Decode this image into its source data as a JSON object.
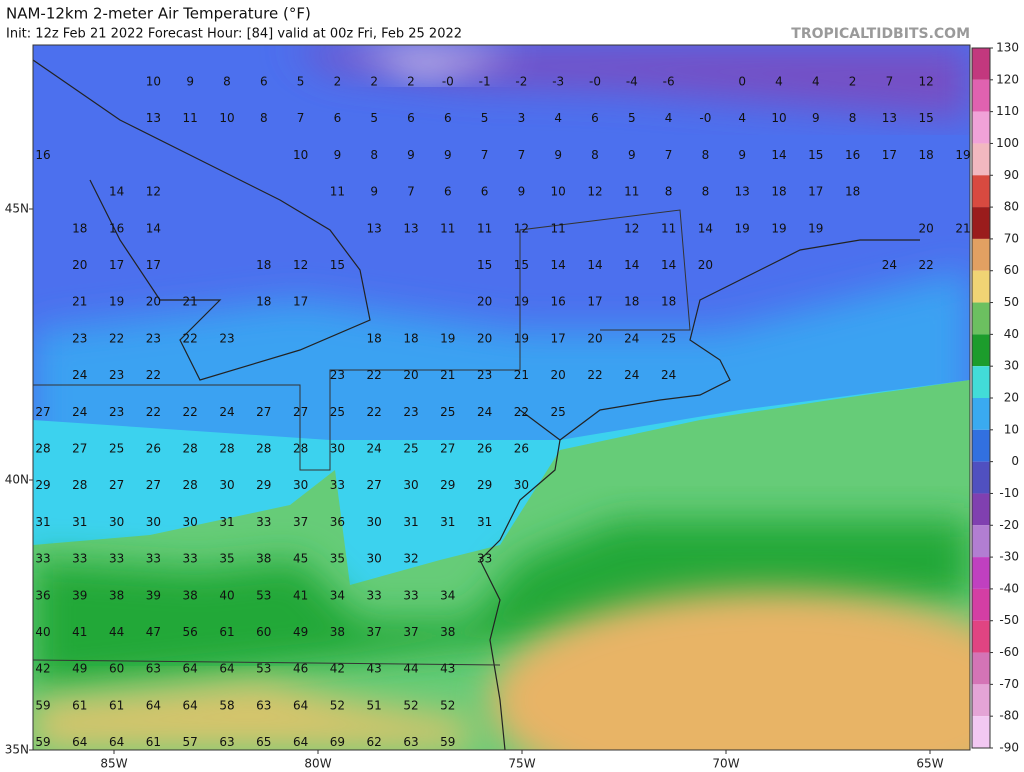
{
  "header": {
    "title": "NAM-12km 2-meter Air Temperature (°F)",
    "subtitle": "Init: 12z Feb 21 2022   Forecast Hour: [84]   valid at 00z Fri, Feb 25 2022",
    "watermark": "TROPICALTIDBITS.COM"
  },
  "map": {
    "lat_labels": [
      "45N",
      "40N",
      "35N"
    ],
    "lon_labels": [
      "85W",
      "80W",
      "75W",
      "70W",
      "65W"
    ],
    "grid_values": [
      [
        null,
        null,
        null,
        10,
        9,
        8,
        6,
        5,
        2,
        2,
        2,
        "-0",
        -1,
        -2,
        -3,
        "-0",
        -4,
        -6,
        null,
        0,
        4,
        4,
        2,
        7,
        12,
        null
      ],
      [
        null,
        null,
        null,
        13,
        11,
        10,
        8,
        7,
        6,
        5,
        6,
        6,
        5,
        3,
        4,
        6,
        5,
        4,
        "-0",
        4,
        10,
        9,
        8,
        13,
        15,
        null
      ],
      [
        16,
        null,
        null,
        null,
        null,
        null,
        null,
        10,
        9,
        8,
        9,
        9,
        7,
        7,
        9,
        8,
        9,
        7,
        8,
        9,
        14,
        15,
        16,
        17,
        18,
        19
      ],
      [
        null,
        null,
        14,
        12,
        null,
        null,
        null,
        null,
        11,
        9,
        7,
        6,
        6,
        9,
        10,
        12,
        11,
        8,
        8,
        13,
        18,
        17,
        18,
        null,
        null,
        null
      ],
      [
        null,
        18,
        16,
        14,
        null,
        null,
        null,
        null,
        null,
        13,
        13,
        11,
        11,
        12,
        11,
        null,
        12,
        11,
        14,
        19,
        19,
        19,
        null,
        null,
        20,
        21
      ],
      [
        null,
        20,
        17,
        17,
        null,
        null,
        18,
        12,
        15,
        null,
        null,
        null,
        15,
        15,
        14,
        14,
        14,
        14,
        20,
        null,
        null,
        null,
        null,
        24,
        22,
        null
      ],
      [
        null,
        21,
        19,
        20,
        21,
        null,
        18,
        17,
        null,
        null,
        null,
        null,
        20,
        19,
        16,
        17,
        18,
        18,
        null,
        null,
        null,
        null,
        null,
        null,
        null,
        null
      ],
      [
        null,
        23,
        22,
        23,
        22,
        23,
        null,
        null,
        null,
        18,
        18,
        19,
        20,
        19,
        17,
        20,
        24,
        25,
        null,
        null,
        null,
        null,
        null,
        null,
        null,
        null
      ],
      [
        null,
        24,
        23,
        22,
        null,
        null,
        null,
        null,
        23,
        22,
        20,
        21,
        23,
        21,
        20,
        22,
        24,
        24,
        null,
        null,
        null,
        null,
        null,
        null,
        null,
        null
      ],
      [
        27,
        24,
        23,
        22,
        22,
        24,
        27,
        27,
        25,
        22,
        23,
        25,
        24,
        22,
        25,
        null,
        null,
        null,
        null,
        null,
        null,
        null,
        null,
        null,
        null,
        null
      ],
      [
        28,
        27,
        25,
        26,
        28,
        28,
        28,
        28,
        30,
        24,
        25,
        27,
        26,
        26,
        null,
        null,
        null,
        null,
        null,
        null,
        null,
        null,
        null,
        null,
        null,
        null
      ],
      [
        29,
        28,
        27,
        27,
        28,
        30,
        29,
        30,
        33,
        27,
        30,
        29,
        29,
        30,
        null,
        null,
        null,
        null,
        null,
        null,
        null,
        null,
        null,
        null,
        null,
        null
      ],
      [
        31,
        31,
        30,
        30,
        30,
        31,
        33,
        37,
        36,
        30,
        31,
        31,
        31,
        null,
        null,
        null,
        null,
        null,
        null,
        null,
        null,
        null,
        null,
        null,
        null,
        null
      ],
      [
        33,
        33,
        33,
        33,
        33,
        35,
        38,
        45,
        35,
        30,
        32,
        null,
        33,
        null,
        null,
        null,
        null,
        null,
        null,
        null,
        null,
        null,
        null,
        null,
        null,
        null
      ],
      [
        36,
        39,
        38,
        39,
        38,
        40,
        53,
        41,
        34,
        33,
        33,
        34,
        null,
        null,
        null,
        null,
        null,
        null,
        null,
        null,
        null,
        null,
        null,
        null,
        null,
        null
      ],
      [
        40,
        41,
        44,
        47,
        56,
        61,
        60,
        49,
        38,
        37,
        37,
        38,
        null,
        null,
        null,
        null,
        null,
        null,
        null,
        null,
        null,
        null,
        null,
        null,
        null,
        null
      ],
      [
        42,
        49,
        60,
        63,
        64,
        64,
        53,
        46,
        42,
        43,
        44,
        43,
        null,
        null,
        null,
        null,
        null,
        null,
        null,
        null,
        null,
        null,
        null,
        null,
        null,
        null
      ],
      [
        59,
        61,
        61,
        64,
        64,
        58,
        63,
        64,
        52,
        51,
        52,
        52,
        null,
        null,
        null,
        null,
        null,
        null,
        null,
        null,
        null,
        null,
        null,
        null,
        null,
        null
      ],
      [
        59,
        64,
        64,
        61,
        57,
        63,
        65,
        64,
        69,
        62,
        63,
        59,
        null,
        null,
        null,
        null,
        null,
        null,
        null,
        null,
        null,
        null,
        null,
        null,
        null,
        null
      ]
    ]
  },
  "colorbar": {
    "ticks": [
      130,
      120,
      110,
      100,
      90,
      80,
      70,
      60,
      50,
      40,
      30,
      20,
      10,
      0,
      -10,
      -20,
      -30,
      -40,
      -50,
      -60,
      -70,
      -80,
      -90
    ],
    "colors": [
      "#c2387e",
      "#e062b0",
      "#f0a2d8",
      "#f2b8c0",
      "#d84a40",
      "#9a1c1c",
      "#e2a062",
      "#f0d474",
      "#6cc060",
      "#1c9c2c",
      "#42dcd8",
      "#3aaaf0",
      "#3270e0",
      "#5050c0",
      "#8040b0",
      "#b27ed2",
      "#c040c0",
      "#d43ea4",
      "#e04482",
      "#d474b6",
      "#e4a4d6",
      "#f2c8f2",
      "#f8e4f8"
    ]
  }
}
